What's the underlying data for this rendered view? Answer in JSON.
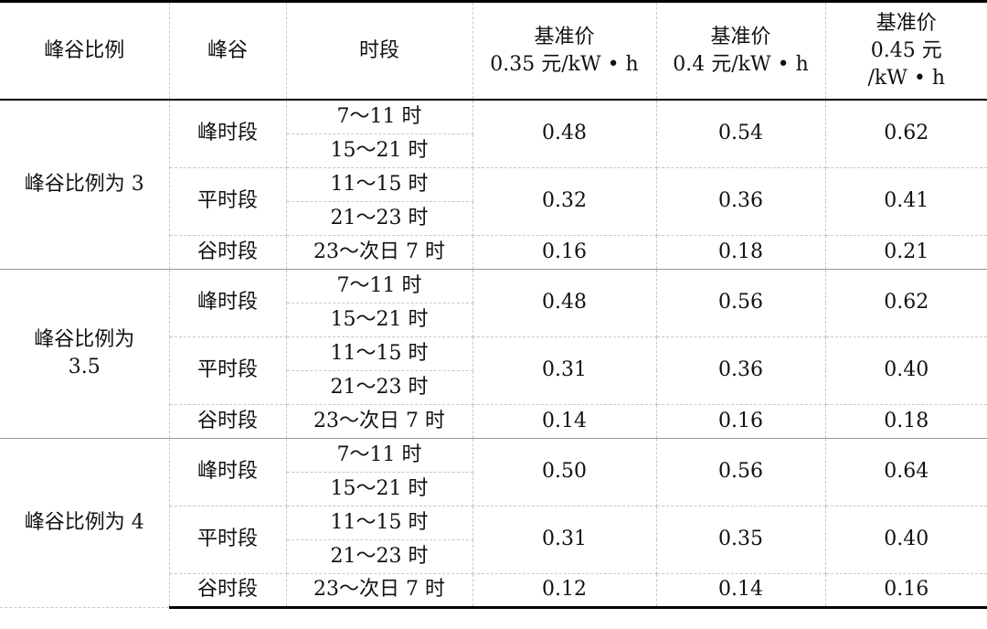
{
  "header": {
    "columns": [
      [
        "峰谷比例"
      ],
      [
        "峰谷"
      ],
      [
        "时段"
      ],
      [
        "基准价",
        "0.35 元/kW • h"
      ],
      [
        "基准价",
        "0.4 元/kW • h"
      ],
      [
        "基准价",
        "0.45 元",
        "/kW • h"
      ]
    ]
  },
  "groups": [
    {
      "label": [
        "峰谷比例为 3"
      ],
      "periods": [
        {
          "name": "峰时段",
          "slots": [
            "7～11 时",
            "15～21 时"
          ],
          "prices": [
            "0.48",
            "0.54",
            "0.62"
          ]
        },
        {
          "name": "平时段",
          "slots": [
            "11～15 时",
            "21～23 时"
          ],
          "prices": [
            "0.32",
            "0.36",
            "0.41"
          ]
        },
        {
          "name": "谷时段",
          "slots": [
            "23～次日 7 时"
          ],
          "prices": [
            "0.16",
            "0.18",
            "0.21"
          ]
        }
      ]
    },
    {
      "label": [
        "峰谷比例为",
        "3.5"
      ],
      "periods": [
        {
          "name": "峰时段",
          "slots": [
            "7～11 时",
            "15～21 时"
          ],
          "prices": [
            "0.48",
            "0.56",
            "0.62"
          ]
        },
        {
          "name": "平时段",
          "slots": [
            "11～15 时",
            "21～23 时"
          ],
          "prices": [
            "0.31",
            "0.36",
            "0.40"
          ]
        },
        {
          "name": "谷时段",
          "slots": [
            "23～次日 7 时"
          ],
          "prices": [
            "0.14",
            "0.16",
            "0.18"
          ]
        }
      ]
    },
    {
      "label": [
        "峰谷比例为 4"
      ],
      "periods": [
        {
          "name": "峰时段",
          "slots": [
            "7～11 时",
            "15～21 时"
          ],
          "prices": [
            "0.50",
            "0.56",
            "0.64"
          ]
        },
        {
          "name": "平时段",
          "slots": [
            "11～15 时",
            "21～23 时"
          ],
          "prices": [
            "0.31",
            "0.35",
            "0.40"
          ]
        },
        {
          "name": "谷时段",
          "slots": [
            "23～次日 7 时"
          ],
          "prices": [
            "0.12",
            "0.14",
            "0.16"
          ]
        }
      ]
    }
  ]
}
